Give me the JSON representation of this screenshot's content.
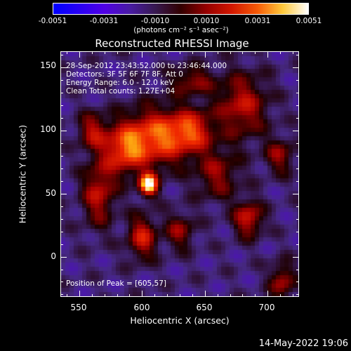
{
  "chart_data": {
    "type": "heatmap",
    "title": "Reconstructed RHESSI Image",
    "xlabel": "Heliocentric X (arcsec)",
    "ylabel": "Heliocentric Y (arcsec)",
    "xlim": [
      535,
      725
    ],
    "ylim": [
      -32,
      163
    ],
    "x_ticks": [
      550,
      600,
      650,
      700
    ],
    "y_ticks": [
      0,
      50,
      100,
      150
    ],
    "colorbar": {
      "range": [
        -0.0051,
        0.0051
      ],
      "tick_labels": [
        "-0.0051",
        "-0.0031",
        "-0.0010",
        "0.0010",
        "0.0031",
        "0.0051"
      ],
      "units": "(photons cm⁻² s⁻¹ asec⁻²)"
    },
    "info_lines": [
      "28-Sep-2012 23:43:52.000 to 23:46:44.000",
      "Detectors: 3F 5F 6F 7F 8F, Att 0",
      "Energy Range: 6.0 - 12.0 keV",
      "Clean     Total counts: 1.27E+04"
    ],
    "peak_label": "Position of Peak = [605,57]",
    "peak": {
      "x": 605,
      "y": 57,
      "value": 0.0051
    },
    "sources": [
      {
        "x": 605,
        "y": 57,
        "sx": 5,
        "sy": 6,
        "amp": 1.0
      },
      {
        "x": 612,
        "y": 95,
        "sx": 18,
        "sy": 16,
        "amp": 0.65
      },
      {
        "x": 585,
        "y": 85,
        "sx": 12,
        "sy": 14,
        "amp": 0.55
      },
      {
        "x": 640,
        "y": 100,
        "sx": 12,
        "sy": 12,
        "amp": 0.5
      },
      {
        "x": 600,
        "y": 15,
        "sx": 8,
        "sy": 12,
        "amp": 0.5
      },
      {
        "x": 565,
        "y": 50,
        "sx": 9,
        "sy": 18,
        "amp": 0.45
      },
      {
        "x": 560,
        "y": 100,
        "sx": 8,
        "sy": 10,
        "amp": 0.4
      },
      {
        "x": 680,
        "y": 120,
        "sx": 14,
        "sy": 18,
        "amp": 0.45
      },
      {
        "x": 685,
        "y": 30,
        "sx": 8,
        "sy": 10,
        "amp": 0.5
      },
      {
        "x": 660,
        "y": 65,
        "sx": 12,
        "sy": 14,
        "amp": 0.35
      },
      {
        "x": 630,
        "y": 20,
        "sx": 8,
        "sy": 10,
        "amp": 0.35
      },
      {
        "x": 712,
        "y": -20,
        "sx": 7,
        "sy": 10,
        "amp": 0.4
      },
      {
        "x": 710,
        "y": 80,
        "sx": 8,
        "sy": 10,
        "amp": 0.35
      },
      {
        "x": 640,
        "y": 140,
        "sx": 12,
        "sy": 8,
        "amp": 0.35
      }
    ]
  },
  "footer": {
    "timestamp": "14-May-2022 19:06"
  }
}
